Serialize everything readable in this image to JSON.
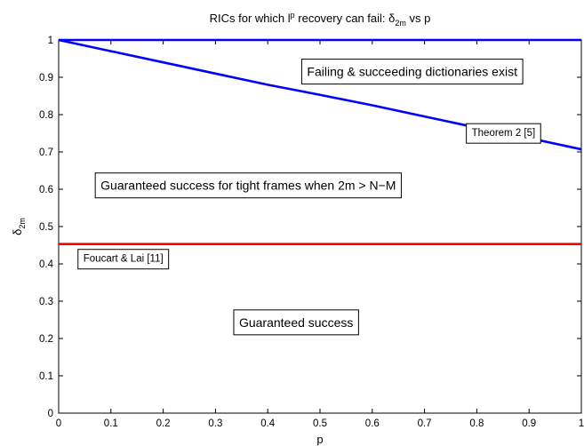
{
  "chart_data": {
    "type": "line",
    "title": {
      "prefix": "RICs for which l",
      "sup": "p",
      "middle": " recovery can fail: δ",
      "sub": "2m",
      "suffix": " vs p"
    },
    "xlabel": "p",
    "ylabel": {
      "main": "δ",
      "sub": "2m"
    },
    "xlim": [
      0,
      1
    ],
    "ylim": [
      0,
      1
    ],
    "x_ticks": [
      0,
      0.1,
      0.2,
      0.3,
      0.4,
      0.5,
      0.6,
      0.7,
      0.8,
      0.9,
      1
    ],
    "y_ticks": [
      0,
      0.1,
      0.2,
      0.3,
      0.4,
      0.5,
      0.6,
      0.7,
      0.8,
      0.9,
      1
    ],
    "x_tick_labels": [
      "0",
      "0.1",
      "0.2",
      "0.3",
      "0.4",
      "0.5",
      "0.6",
      "0.7",
      "0.8",
      "0.9",
      "1"
    ],
    "y_tick_labels": [
      "0",
      "0.1",
      "0.2",
      "0.3",
      "0.4",
      "0.5",
      "0.6",
      "0.7",
      "0.8",
      "0.9",
      "1"
    ],
    "grid": false,
    "series": [
      {
        "color": "#0000ff",
        "x": [
          0,
          1
        ],
        "y": [
          1,
          1
        ]
      },
      {
        "color": "#0000ff",
        "x": [
          0,
          0.1,
          0.2,
          0.3,
          0.4,
          0.5,
          0.6,
          0.7,
          0.8,
          0.9,
          1
        ],
        "y": [
          1,
          0.97,
          0.94,
          0.91,
          0.88,
          0.853,
          0.825,
          0.795,
          0.765,
          0.737,
          0.707
        ]
      },
      {
        "color": "#ff0000",
        "x": [
          0,
          1
        ],
        "y": [
          0.4531,
          0.4531
        ]
      }
    ],
    "annotations": [
      {
        "text": "Failing & succeeding dictionaries exist",
        "x": 0.465,
        "y": 0.915,
        "size": "large"
      },
      {
        "text": "Theorem 2 [5]",
        "x": 0.78,
        "y": 0.752,
        "size": "small"
      },
      {
        "text": "Guaranteed success for tight frames when 2m > N−M",
        "x": 0.07,
        "y": 0.61,
        "size": "large"
      },
      {
        "text": "Foucart & Lai [11]",
        "x": 0.037,
        "y": 0.415,
        "size": "small"
      },
      {
        "text": "Guaranteed success",
        "x": 0.335,
        "y": 0.243,
        "size": "large"
      }
    ]
  }
}
